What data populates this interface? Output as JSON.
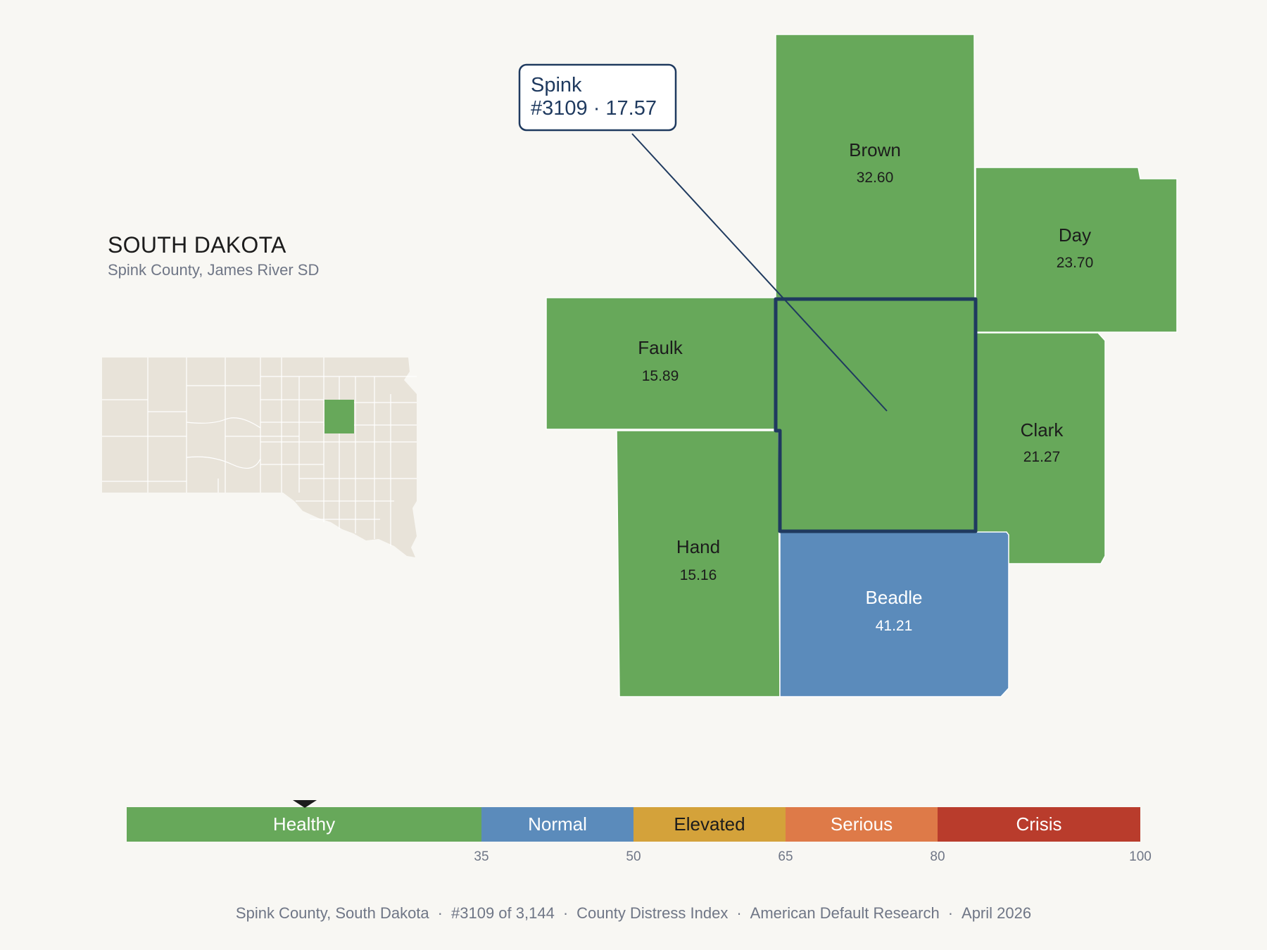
{
  "state": {
    "title": "SOUTH DAKOTA",
    "subtitle": "Spink County, James River SD"
  },
  "callout": {
    "name": "Spink",
    "detail": "#3109 · 17.57"
  },
  "counties": [
    {
      "name": "Brown",
      "value": "32.60",
      "category": "Healthy"
    },
    {
      "name": "Day",
      "value": "23.70",
      "category": "Healthy"
    },
    {
      "name": "Faulk",
      "value": "15.89",
      "category": "Healthy"
    },
    {
      "name": "Clark",
      "value": "21.27",
      "category": "Healthy"
    },
    {
      "name": "Hand",
      "value": "15.16",
      "category": "Healthy"
    },
    {
      "name": "Beadle",
      "value": "41.21",
      "category": "Normal"
    }
  ],
  "focus_county": {
    "name": "Spink",
    "rank": "#3109",
    "value": 17.57,
    "category": "Healthy"
  },
  "legend": {
    "segments": [
      {
        "label": "Healthy",
        "from": 0,
        "to": 35,
        "color": "#67a85a"
      },
      {
        "label": "Normal",
        "from": 35,
        "to": 50,
        "color": "#5b8bbb"
      },
      {
        "label": "Elevated",
        "from": 50,
        "to": 65,
        "color": "#d4a23a"
      },
      {
        "label": "Serious",
        "from": 65,
        "to": 80,
        "color": "#de7a48"
      },
      {
        "label": "Crisis",
        "from": 80,
        "to": 100,
        "color": "#b93c2c"
      }
    ],
    "ticks": [
      "35",
      "50",
      "65",
      "80",
      "100"
    ],
    "marker_value": 17.57
  },
  "footer": {
    "county": "Spink County, South Dakota",
    "rank": "#3109 of 3,144",
    "index": "County Distress Index",
    "source": "American Default Research",
    "date": "April 2026",
    "separator": "·"
  },
  "colors": {
    "healthy": "#67a85a",
    "normal": "#5b8bbb",
    "outline": "#1f3a5f",
    "inset_fill": "#e8e3d9",
    "background": "#f8f7f3"
  }
}
